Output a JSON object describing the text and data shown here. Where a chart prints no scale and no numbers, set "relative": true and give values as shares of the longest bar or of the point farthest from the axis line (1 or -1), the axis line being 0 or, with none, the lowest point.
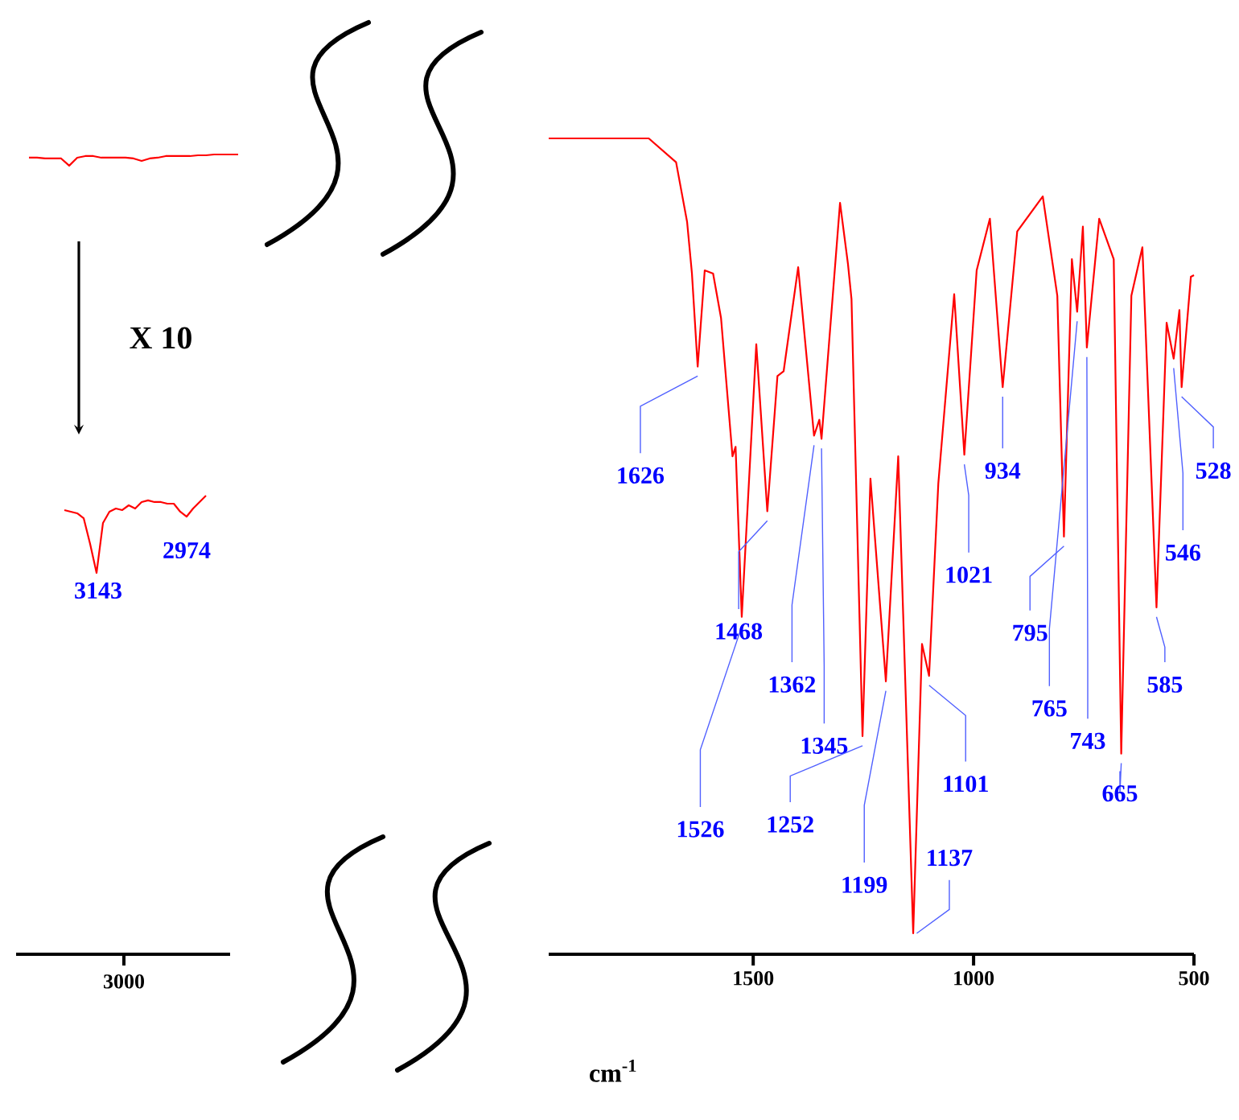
{
  "chart_data": [
    {
      "type": "line",
      "relative": true,
      "marker": "none",
      "line_style": "solid",
      "grid": false,
      "categories": [
        null,
        null,
        null,
        null,
        null,
        null,
        null,
        null,
        null,
        null,
        null,
        null,
        null,
        null,
        null,
        null,
        null,
        null,
        null,
        null,
        null,
        null,
        null,
        null,
        null,
        null,
        null
      ],
      "series": [
        {
          "color": "#ff0000",
          "values": [
            0.996,
            0.996,
            0.995,
            0.995,
            0.995,
            0.986,
            0.996,
            0.998,
            0.998,
            0.996,
            0.996,
            0.996,
            0.996,
            0.995,
            0.992,
            0.995,
            0.996,
            0.998,
            0.998,
            0.998,
            0.998,
            0.999,
            0.999,
            1.0,
            1.0,
            1.0,
            1.0
          ]
        }
      ],
      "annotations": [
        "3000"
      ]
    },
    {
      "type": "line",
      "relative": true,
      "marker": "none",
      "line_style": "solid",
      "grid": false,
      "categories": [
        null,
        null,
        null,
        null,
        null,
        null,
        null,
        null,
        null,
        null,
        null,
        null,
        null,
        null,
        null,
        null,
        null,
        null,
        null,
        null,
        null,
        null,
        null
      ],
      "series": [
        {
          "color": "#ff0000",
          "values": [
            0.813,
            0.792,
            0.771,
            0.708,
            0.375,
            0.0,
            0.646,
            0.792,
            0.833,
            0.813,
            0.875,
            0.833,
            0.917,
            0.938,
            0.917,
            0.917,
            0.896,
            0.896,
            0.792,
            0.729,
            0.833,
            0.917,
            1.0
          ]
        }
      ],
      "annotations": [
        "X 10",
        "3143",
        "2974"
      ]
    },
    {
      "type": "line",
      "relative": true,
      "xlim": [
        1964,
        500
      ],
      "xticks": [
        1500,
        1000,
        500
      ],
      "xlabel": "cm$^{-1}$",
      "marker": "none",
      "line_style": "solid",
      "grid": false,
      "series": [
        {
          "color": "#ff0000",
          "x": [
            1964,
            1737,
            1675,
            1650,
            1639,
            1626,
            1610,
            1591,
            1573,
            1547,
            1540,
            1526,
            1493,
            1468,
            1445,
            1431,
            1398,
            1362,
            1350,
            1345,
            1303,
            1285,
            1277,
            1252,
            1234,
            1199,
            1171,
            1137,
            1117,
            1101,
            1080,
            1044,
            1021,
            993,
            963,
            934,
            901,
            843,
            810,
            795,
            777,
            765,
            752,
            743,
            715,
            682,
            665,
            642,
            617,
            585,
            562,
            546,
            533,
            528,
            507,
            500
          ],
          "values": [
            1.0,
            1.0,
            0.97,
            0.895,
            0.83,
            0.713,
            0.834,
            0.83,
            0.774,
            0.6,
            0.612,
            0.398,
            0.741,
            0.531,
            0.701,
            0.707,
            0.838,
            0.626,
            0.646,
            0.622,
            0.919,
            0.842,
            0.798,
            0.248,
            0.572,
            0.317,
            0.6,
            0.0,
            0.364,
            0.324,
            0.566,
            0.804,
            0.602,
            0.834,
            0.899,
            0.687,
            0.883,
            0.927,
            0.802,
            0.499,
            0.848,
            0.782,
            0.889,
            0.737,
            0.899,
            0.848,
            0.226,
            0.802,
            0.863,
            0.41,
            0.768,
            0.723,
            0.784,
            0.687,
            0.826,
            0.828
          ]
        }
      ],
      "annotations": [
        {
          "text": "1626",
          "x": 1626,
          "y": 0.713
        },
        {
          "text": "1526",
          "x": 1526,
          "y": 0.398
        },
        {
          "text": "1468",
          "x": 1468,
          "y": 0.531
        },
        {
          "text": "1362",
          "x": 1362,
          "y": 0.626
        },
        {
          "text": "1345",
          "x": 1345,
          "y": 0.622
        },
        {
          "text": "1252",
          "x": 1252,
          "y": 0.248
        },
        {
          "text": "1199",
          "x": 1199,
          "y": 0.317
        },
        {
          "text": "1137",
          "x": 1137,
          "y": 0.0
        },
        {
          "text": "1101",
          "x": 1101,
          "y": 0.324
        },
        {
          "text": "1021",
          "x": 1021,
          "y": 0.602
        },
        {
          "text": "934",
          "x": 934,
          "y": 0.687
        },
        {
          "text": "795",
          "x": 795,
          "y": 0.499
        },
        {
          "text": "765",
          "x": 765,
          "y": 0.782
        },
        {
          "text": "743",
          "x": 743,
          "y": 0.737
        },
        {
          "text": "665",
          "x": 665,
          "y": 0.226
        },
        {
          "text": "585",
          "x": 585,
          "y": 0.41
        },
        {
          "text": "546",
          "x": 546,
          "y": 0.723
        },
        {
          "text": "528",
          "x": 528,
          "y": 0.687
        }
      ]
    }
  ]
}
